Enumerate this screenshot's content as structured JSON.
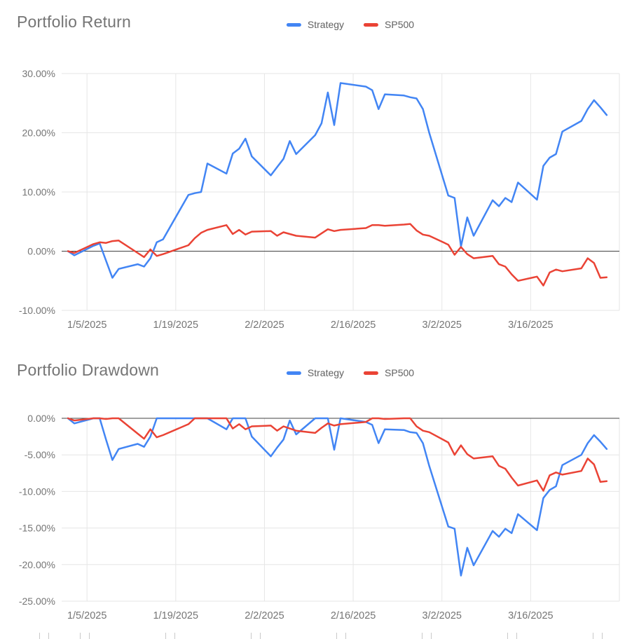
{
  "page": {
    "background": "#ffffff"
  },
  "chart_data": [
    {
      "type": "line",
      "title": "Portfolio Return",
      "grid": true,
      "legend_position": "top-center",
      "x_axis": {
        "tick_labels": [
          "1/5/2025",
          "1/19/2025",
          "2/2/2025",
          "2/16/2025",
          "3/2/2025",
          "3/16/2025"
        ],
        "range": [
          "1/1/2025",
          "3/30/2025"
        ]
      },
      "y_axis": {
        "unit": "%",
        "lim": [
          -10,
          30
        ],
        "ticks": [
          30,
          20,
          10,
          0,
          -10
        ],
        "tick_labels": [
          "30.00%",
          "20.00%",
          "10.00%",
          "0.00%",
          "-10.00%"
        ]
      },
      "dates": [
        "1/2/2025",
        "1/3/2025",
        "1/6/2025",
        "1/7/2025",
        "1/8/2025",
        "1/9/2025",
        "1/10/2025",
        "1/13/2025",
        "1/14/2025",
        "1/15/2025",
        "1/16/2025",
        "1/17/2025",
        "1/21/2025",
        "1/22/2025",
        "1/23/2025",
        "1/24/2025",
        "1/27/2025",
        "1/28/2025",
        "1/29/2025",
        "1/30/2025",
        "1/31/2025",
        "2/3/2025",
        "2/4/2025",
        "2/5/2025",
        "2/6/2025",
        "2/7/2025",
        "2/10/2025",
        "2/11/2025",
        "2/12/2025",
        "2/13/2025",
        "2/14/2025",
        "2/18/2025",
        "2/19/2025",
        "2/20/2025",
        "2/21/2025",
        "2/24/2025",
        "2/25/2025",
        "2/26/2025",
        "2/27/2025",
        "2/28/2025",
        "3/3/2025",
        "3/4/2025",
        "3/5/2025",
        "3/6/2025",
        "3/7/2025",
        "3/10/2025",
        "3/11/2025",
        "3/12/2025",
        "3/13/2025",
        "3/14/2025",
        "3/17/2025",
        "3/18/2025",
        "3/19/2025",
        "3/20/2025",
        "3/21/2025",
        "3/24/2025",
        "3/25/2025",
        "3/26/2025",
        "3/27/2025",
        "3/28/2025"
      ],
      "series": [
        {
          "name": "Strategy",
          "color": "#4285f4",
          "values": [
            0.0,
            -0.7,
            0.9,
            1.3,
            -1.6,
            -4.5,
            -3.0,
            -2.2,
            -2.6,
            -1.2,
            1.5,
            2.0,
            9.5,
            9.8,
            10.0,
            14.8,
            13.1,
            16.5,
            17.3,
            19.0,
            16.0,
            12.8,
            14.2,
            15.6,
            18.6,
            16.4,
            19.6,
            21.6,
            26.8,
            21.3,
            28.4,
            27.8,
            27.2,
            24.0,
            26.5,
            26.3,
            26.0,
            25.8,
            24.0,
            20.0,
            9.4,
            9.0,
            0.8,
            5.7,
            2.6,
            8.6,
            7.6,
            9.0,
            8.3,
            11.6,
            8.7,
            14.4,
            15.8,
            16.4,
            20.2,
            22.0,
            24.0,
            25.5,
            24.3,
            23.0
          ]
        },
        {
          "name": "SP500",
          "color": "#ea4335",
          "values": [
            0.0,
            -0.3,
            1.2,
            1.5,
            1.4,
            1.7,
            1.8,
            -0.3,
            -1.0,
            0.3,
            -0.8,
            -0.5,
            1.0,
            2.2,
            3.1,
            3.6,
            4.4,
            2.9,
            3.6,
            2.8,
            3.3,
            3.4,
            2.6,
            3.2,
            2.9,
            2.6,
            2.3,
            3.0,
            3.7,
            3.4,
            3.6,
            3.9,
            4.4,
            4.4,
            4.3,
            4.5,
            4.6,
            3.5,
            2.8,
            2.6,
            1.1,
            -0.6,
            0.7,
            -0.5,
            -1.2,
            -0.8,
            -2.2,
            -2.6,
            -3.9,
            -5.0,
            -4.3,
            -5.8,
            -3.6,
            -3.1,
            -3.4,
            -2.9,
            -1.2,
            -2.0,
            -4.5,
            -4.4
          ]
        }
      ]
    },
    {
      "type": "line",
      "title": "Portfolio Drawdown",
      "grid": true,
      "legend_position": "top-center",
      "x_axis": {
        "tick_labels": [
          "1/5/2025",
          "1/19/2025",
          "2/2/2025",
          "2/16/2025",
          "3/2/2025",
          "3/16/2025"
        ],
        "range": [
          "1/1/2025",
          "3/30/2025"
        ]
      },
      "y_axis": {
        "unit": "%",
        "lim": [
          -25,
          0
        ],
        "ticks": [
          0,
          -5,
          -10,
          -15,
          -20,
          -25
        ],
        "tick_labels": [
          "0.00%",
          "-5.00%",
          "-10.00%",
          "-15.00%",
          "-20.00%",
          "-25.00%"
        ]
      },
      "dates": [
        "1/2/2025",
        "1/3/2025",
        "1/6/2025",
        "1/7/2025",
        "1/8/2025",
        "1/9/2025",
        "1/10/2025",
        "1/13/2025",
        "1/14/2025",
        "1/15/2025",
        "1/16/2025",
        "1/17/2025",
        "1/21/2025",
        "1/22/2025",
        "1/23/2025",
        "1/24/2025",
        "1/27/2025",
        "1/28/2025",
        "1/29/2025",
        "1/30/2025",
        "1/31/2025",
        "2/3/2025",
        "2/4/2025",
        "2/5/2025",
        "2/6/2025",
        "2/7/2025",
        "2/10/2025",
        "2/11/2025",
        "2/12/2025",
        "2/13/2025",
        "2/14/2025",
        "2/18/2025",
        "2/19/2025",
        "2/20/2025",
        "2/21/2025",
        "2/24/2025",
        "2/25/2025",
        "2/26/2025",
        "2/27/2025",
        "2/28/2025",
        "3/3/2025",
        "3/4/2025",
        "3/5/2025",
        "3/6/2025",
        "3/7/2025",
        "3/10/2025",
        "3/11/2025",
        "3/12/2025",
        "3/13/2025",
        "3/14/2025",
        "3/17/2025",
        "3/18/2025",
        "3/19/2025",
        "3/20/2025",
        "3/21/2025",
        "3/24/2025",
        "3/25/2025",
        "3/26/2025",
        "3/27/2025",
        "3/28/2025"
      ],
      "series": [
        {
          "name": "Strategy",
          "color": "#4285f4",
          "values": [
            0.0,
            -0.7,
            0.0,
            0.0,
            -2.9,
            -5.7,
            -4.2,
            -3.5,
            -3.9,
            -2.5,
            0.0,
            0.0,
            0.0,
            0.0,
            0.0,
            0.0,
            -1.5,
            0.0,
            0.0,
            0.0,
            -2.5,
            -5.2,
            -4.0,
            -2.9,
            -0.3,
            -2.2,
            0.0,
            0.0,
            0.0,
            -4.3,
            0.0,
            -0.5,
            -0.9,
            -3.4,
            -1.5,
            -1.6,
            -1.9,
            -2.0,
            -3.4,
            -6.5,
            -14.8,
            -15.1,
            -21.5,
            -17.7,
            -20.1,
            -15.4,
            -16.2,
            -15.1,
            -15.7,
            -13.1,
            -15.3,
            -10.9,
            -9.8,
            -9.3,
            -6.4,
            -5.0,
            -3.4,
            -2.3,
            -3.2,
            -4.2
          ]
        },
        {
          "name": "SP500",
          "color": "#ea4335",
          "values": [
            0.0,
            -0.3,
            0.0,
            0.0,
            -0.1,
            0.0,
            0.0,
            -2.1,
            -2.8,
            -1.5,
            -2.6,
            -2.3,
            -0.8,
            0.0,
            0.0,
            0.0,
            0.0,
            -1.4,
            -0.8,
            -1.5,
            -1.1,
            -1.0,
            -1.7,
            -1.1,
            -1.4,
            -1.7,
            -2.0,
            -1.3,
            -0.7,
            -1.0,
            -0.8,
            -0.5,
            0.0,
            0.0,
            -0.1,
            0.0,
            0.0,
            -1.1,
            -1.7,
            -1.9,
            -3.3,
            -5.0,
            -3.7,
            -4.9,
            -5.5,
            -5.2,
            -6.5,
            -6.9,
            -8.1,
            -9.2,
            -8.5,
            -9.9,
            -7.8,
            -7.4,
            -7.7,
            -7.2,
            -5.5,
            -6.3,
            -8.7,
            -8.6
          ]
        }
      ]
    }
  ],
  "colors": {
    "gridline": "#e6e6e6",
    "zero_line": "#424242",
    "axis_text": "#757575",
    "title_text": "#757575"
  }
}
